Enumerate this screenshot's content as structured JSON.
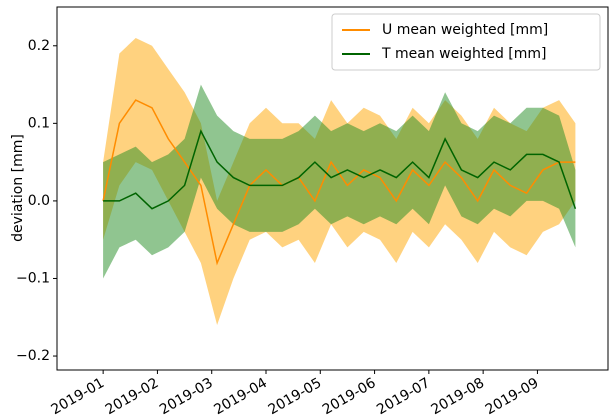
{
  "chart_data": {
    "type": "line",
    "y_label": "deviation [mm]",
    "x": [
      0,
      0.3,
      0.6,
      0.9,
      1.2,
      1.5,
      1.8,
      2.1,
      2.4,
      2.7,
      3.0,
      3.3,
      3.6,
      3.9,
      4.2,
      4.5,
      4.8,
      5.1,
      5.4,
      5.7,
      6.0,
      6.3,
      6.6,
      6.9,
      7.2,
      7.5,
      7.8,
      8.1,
      8.4,
      8.7
    ],
    "xlim": [
      -0.85,
      9.3
    ],
    "xticks": [
      {
        "value": 0,
        "label": "2019-01"
      },
      {
        "value": 1,
        "label": "2019-02"
      },
      {
        "value": 2,
        "label": "2019-03"
      },
      {
        "value": 3,
        "label": "2019-04"
      },
      {
        "value": 4,
        "label": "2019-05"
      },
      {
        "value": 5,
        "label": "2019-06"
      },
      {
        "value": 6,
        "label": "2019-07"
      },
      {
        "value": 7,
        "label": "2019-08"
      },
      {
        "value": 8,
        "label": "2019-09"
      }
    ],
    "ylim": [
      -0.218,
      0.25
    ],
    "yticks": [
      {
        "value": -0.2,
        "label": "−0.2"
      },
      {
        "value": -0.1,
        "label": "−0.1"
      },
      {
        "value": 0,
        "label": "0.0"
      },
      0.1,
      0.2
    ],
    "legend": "upper right",
    "series": [
      {
        "name": "U mean weighted [mm]",
        "color": "#ff8c00",
        "band_color": "#ffa500",
        "values": [
          0.0,
          0.1,
          0.13,
          0.12,
          0.08,
          0.05,
          0.02,
          -0.08,
          -0.03,
          0.02,
          0.04,
          0.02,
          0.03,
          0.0,
          0.05,
          0.02,
          0.04,
          0.03,
          0.0,
          0.04,
          0.02,
          0.05,
          0.03,
          0.0,
          0.04,
          0.02,
          0.01,
          0.04,
          0.05,
          0.05
        ],
        "upper": [
          0.05,
          0.19,
          0.21,
          0.2,
          0.17,
          0.14,
          0.1,
          0.0,
          0.05,
          0.1,
          0.12,
          0.1,
          0.1,
          0.08,
          0.13,
          0.1,
          0.12,
          0.11,
          0.08,
          0.12,
          0.1,
          0.13,
          0.11,
          0.08,
          0.12,
          0.1,
          0.09,
          0.12,
          0.13,
          0.1
        ],
        "lower": [
          -0.05,
          0.02,
          0.05,
          0.04,
          0.0,
          -0.04,
          -0.08,
          -0.16,
          -0.1,
          -0.05,
          -0.04,
          -0.06,
          -0.05,
          -0.08,
          -0.03,
          -0.06,
          -0.04,
          -0.05,
          -0.08,
          -0.04,
          -0.06,
          -0.03,
          -0.05,
          -0.08,
          -0.04,
          -0.06,
          -0.07,
          -0.04,
          -0.03,
          0.0
        ]
      },
      {
        "name": "T mean weighted [mm]",
        "color": "#006400",
        "band_color": "#228b22",
        "values": [
          0.0,
          0.0,
          0.01,
          -0.01,
          0.0,
          0.02,
          0.09,
          0.05,
          0.03,
          0.02,
          0.02,
          0.02,
          0.03,
          0.05,
          0.03,
          0.04,
          0.03,
          0.04,
          0.03,
          0.05,
          0.03,
          0.08,
          0.04,
          0.03,
          0.05,
          0.04,
          0.06,
          0.06,
          0.05,
          -0.01
        ],
        "upper": [
          0.05,
          0.06,
          0.07,
          0.05,
          0.06,
          0.08,
          0.15,
          0.11,
          0.09,
          0.08,
          0.08,
          0.08,
          0.09,
          0.11,
          0.09,
          0.1,
          0.09,
          0.1,
          0.09,
          0.11,
          0.09,
          0.14,
          0.1,
          0.09,
          0.11,
          0.1,
          0.12,
          0.12,
          0.11,
          0.04
        ],
        "lower": [
          -0.1,
          -0.06,
          -0.05,
          -0.07,
          -0.06,
          -0.04,
          0.03,
          -0.01,
          -0.03,
          -0.04,
          -0.04,
          -0.04,
          -0.03,
          -0.01,
          -0.03,
          -0.02,
          -0.03,
          -0.02,
          -0.03,
          -0.01,
          -0.03,
          0.02,
          -0.02,
          -0.03,
          -0.01,
          -0.02,
          0.0,
          0.0,
          -0.01,
          -0.06
        ]
      }
    ]
  }
}
